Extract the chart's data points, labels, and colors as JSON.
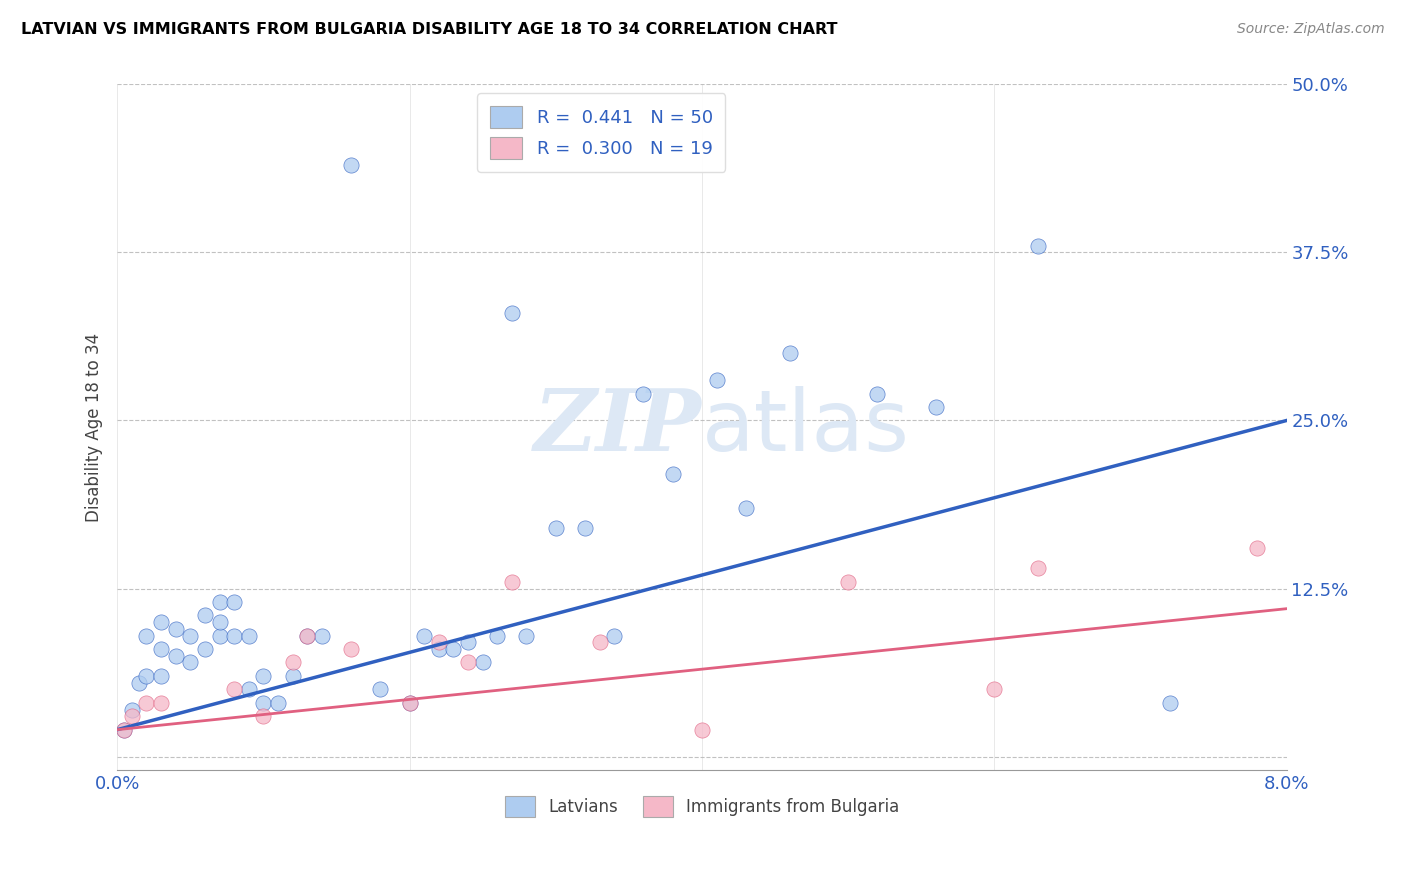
{
  "title": "LATVIAN VS IMMIGRANTS FROM BULGARIA DISABILITY AGE 18 TO 34 CORRELATION CHART",
  "source": "Source: ZipAtlas.com",
  "ylabel": "Disability Age 18 to 34",
  "xlim": [
    0.0,
    0.08
  ],
  "ylim": [
    -0.01,
    0.5
  ],
  "xticks": [
    0.0,
    0.02,
    0.04,
    0.06,
    0.08
  ],
  "xticklabels": [
    "0.0%",
    "",
    "",
    "",
    "8.0%"
  ],
  "yticks": [
    0.0,
    0.125,
    0.25,
    0.375,
    0.5
  ],
  "yticklabels": [
    "",
    "12.5%",
    "25.0%",
    "37.5%",
    "50.0%"
  ],
  "latvian_R": 0.441,
  "latvian_N": 50,
  "bulgaria_R": 0.3,
  "bulgaria_N": 19,
  "latvian_color": "#aeccf0",
  "bulgaria_color": "#f5b8c8",
  "latvian_line_color": "#3060c0",
  "bulgaria_line_color": "#e06080",
  "watermark_color": "#dde8f5",
  "latvian_x": [
    0.0005,
    0.001,
    0.0015,
    0.002,
    0.002,
    0.003,
    0.003,
    0.003,
    0.004,
    0.004,
    0.005,
    0.005,
    0.006,
    0.006,
    0.007,
    0.007,
    0.007,
    0.008,
    0.008,
    0.009,
    0.009,
    0.01,
    0.01,
    0.011,
    0.012,
    0.013,
    0.014,
    0.016,
    0.018,
    0.02,
    0.021,
    0.022,
    0.023,
    0.024,
    0.025,
    0.026,
    0.027,
    0.028,
    0.03,
    0.032,
    0.034,
    0.036,
    0.038,
    0.041,
    0.043,
    0.046,
    0.052,
    0.056,
    0.063,
    0.072
  ],
  "latvian_y": [
    0.02,
    0.035,
    0.055,
    0.06,
    0.09,
    0.06,
    0.08,
    0.1,
    0.075,
    0.095,
    0.07,
    0.09,
    0.08,
    0.105,
    0.09,
    0.1,
    0.115,
    0.09,
    0.115,
    0.05,
    0.09,
    0.04,
    0.06,
    0.04,
    0.06,
    0.09,
    0.09,
    0.44,
    0.05,
    0.04,
    0.09,
    0.08,
    0.08,
    0.085,
    0.07,
    0.09,
    0.33,
    0.09,
    0.17,
    0.17,
    0.09,
    0.27,
    0.21,
    0.28,
    0.185,
    0.3,
    0.27,
    0.26,
    0.38,
    0.04
  ],
  "bulgaria_x": [
    0.0005,
    0.001,
    0.002,
    0.003,
    0.008,
    0.01,
    0.012,
    0.013,
    0.016,
    0.02,
    0.022,
    0.024,
    0.027,
    0.033,
    0.04,
    0.05,
    0.06,
    0.063,
    0.078
  ],
  "bulgaria_y": [
    0.02,
    0.03,
    0.04,
    0.04,
    0.05,
    0.03,
    0.07,
    0.09,
    0.08,
    0.04,
    0.085,
    0.07,
    0.13,
    0.085,
    0.02,
    0.13,
    0.05,
    0.14,
    0.155
  ]
}
